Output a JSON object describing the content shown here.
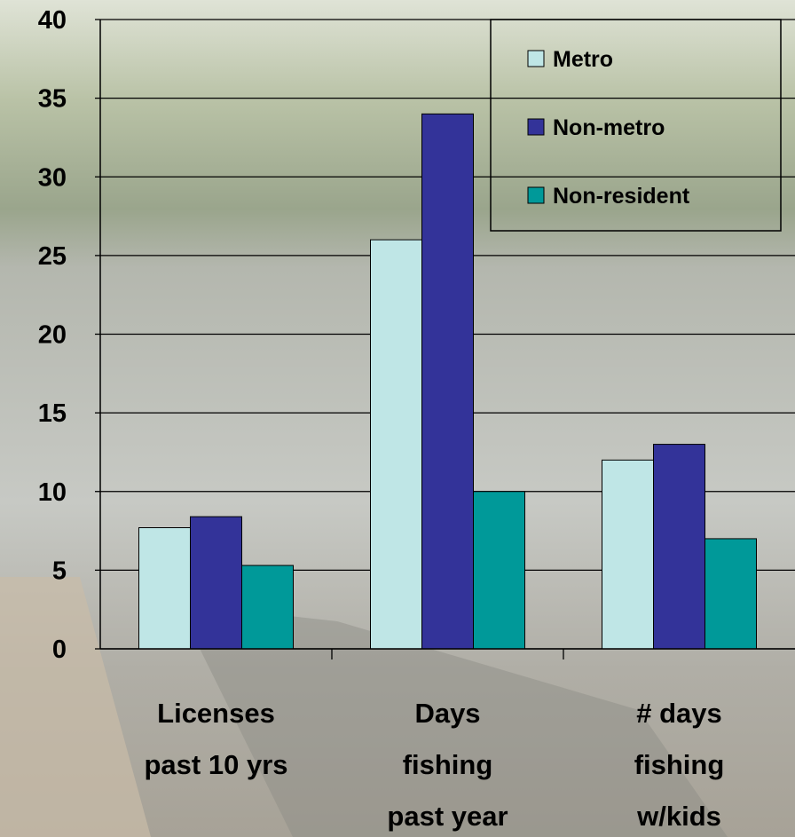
{
  "chart_data": {
    "type": "bar",
    "categories": [
      "Licenses\npast 10 yrs",
      "Days\nfishing\npast year",
      "# days\nfishing\nw/kids"
    ],
    "series": [
      {
        "name": "Metro",
        "color": "#bfe6e6",
        "values": [
          7.7,
          26,
          12
        ]
      },
      {
        "name": "Non-metro",
        "color": "#333399",
        "values": [
          8.4,
          34,
          13
        ]
      },
      {
        "name": "Non-resident",
        "color": "#009999",
        "values": [
          5.3,
          10,
          7
        ]
      }
    ],
    "ylim": [
      0,
      40
    ],
    "yticks": [
      0,
      5,
      10,
      15,
      20,
      25,
      30,
      35,
      40
    ],
    "grid": true,
    "legend": "top-right"
  }
}
